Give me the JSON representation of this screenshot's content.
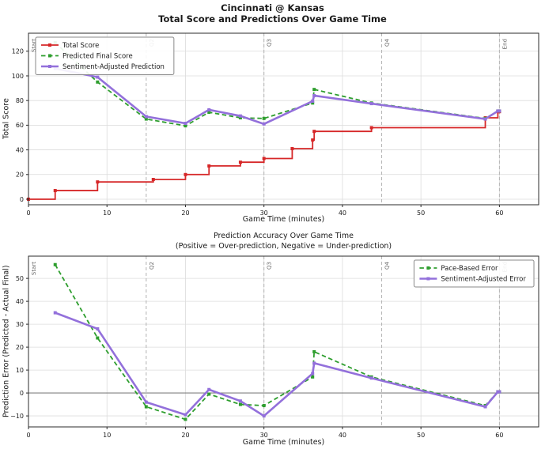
{
  "figure": {
    "suptitle_line1": "Cincinnati @ Kansas",
    "suptitle_line2": "Total Score and Predictions Over Game Time"
  },
  "colors": {
    "total_score": "#d62728",
    "pace_prediction": "#2e9e2e",
    "sentiment_prediction": "#9370db",
    "grid": "#dcdcdc",
    "event_line": "#b3b3b3",
    "zero_line": "#808080",
    "spine": "#2b2b2b",
    "text": "#1a1a1a",
    "legend_border": "#8a8a8a"
  },
  "chart_data": [
    {
      "id": "total-score-chart",
      "type": "line",
      "xlabel": "Game Time (minutes)",
      "ylabel": "Total Score",
      "xlim": [
        0,
        65
      ],
      "ylim": [
        -4.5,
        134.6
      ],
      "xticks": [
        0,
        10,
        20,
        30,
        40,
        50,
        60
      ],
      "yticks": [
        0,
        20,
        40,
        60,
        80,
        100,
        120
      ],
      "grid": true,
      "zero_line": false,
      "legend_position": "upper-left",
      "events": [
        {
          "label": "Start",
          "x": 0
        },
        {
          "label": "Q2",
          "x": 15
        },
        {
          "label": "Q3",
          "x": 30
        },
        {
          "label": "Q4",
          "x": 45
        },
        {
          "label": "End",
          "x": 60
        }
      ],
      "series": [
        {
          "name": "Total Score",
          "color": "#d62728",
          "style": "step",
          "width": 1.8,
          "x": [
            0,
            3.4,
            8.8,
            15.9,
            20,
            23,
            27,
            30,
            33.6,
            36.2,
            36.4,
            43.7,
            58.2,
            59.8,
            60
          ],
          "y": [
            0,
            7,
            14,
            16,
            20,
            27,
            30,
            33,
            41,
            48,
            55,
            58,
            66,
            71,
            71
          ]
        },
        {
          "name": "Predicted Final Score",
          "color": "#2e9e2e",
          "style": "dashed",
          "width": 1.8,
          "x": [
            3.4,
            8.8,
            15,
            20,
            23,
            27,
            30,
            36.2,
            36.4,
            43.7,
            58.2,
            59.8,
            60
          ],
          "y": [
            127,
            95,
            65,
            59.5,
            70.5,
            66,
            65.5,
            78,
            89,
            78,
            65.5,
            71.5,
            71.5
          ]
        },
        {
          "name": "Sentiment-Adjusted Prediction",
          "color": "#9370db",
          "style": "solid",
          "width": 2.6,
          "x": [
            3.4,
            8.8,
            15,
            20,
            23,
            27,
            30,
            36.2,
            36.4,
            43.7,
            58.2,
            59.8,
            60
          ],
          "y": [
            106,
            99,
            67,
            61.5,
            72.5,
            67.5,
            61,
            79.5,
            84,
            77.5,
            65,
            71.5,
            71.5
          ]
        }
      ]
    },
    {
      "id": "prediction-error-chart",
      "type": "line",
      "title_line1": "Prediction Accuracy Over Game Time",
      "title_line2": "(Positive = Over-prediction, Negative = Under-prediction)",
      "xlabel": "Game Time (minutes)",
      "ylabel": "Prediction Error (Predicted - Actual Final)",
      "xlim": [
        0,
        65
      ],
      "ylim": [
        -14.8,
        59.7
      ],
      "xticks": [
        0,
        10,
        20,
        30,
        40,
        50,
        60
      ],
      "yticks": [
        -10,
        0,
        10,
        20,
        30,
        40,
        50
      ],
      "grid": true,
      "zero_line": true,
      "legend_position": "upper-right",
      "events": [
        {
          "label": "Start",
          "x": 0
        },
        {
          "label": "Q2",
          "x": 15
        },
        {
          "label": "Q3",
          "x": 30
        },
        {
          "label": "Q4",
          "x": 45
        },
        {
          "label": "End",
          "x": 60
        }
      ],
      "series": [
        {
          "name": "Pace-Based Error",
          "color": "#2e9e2e",
          "style": "dashed",
          "width": 1.8,
          "x": [
            3.4,
            8.8,
            15,
            20,
            23,
            27,
            30,
            36.2,
            36.4,
            43.7,
            58.2,
            59.8,
            60
          ],
          "y": [
            56,
            24,
            -6,
            -11.5,
            -0.5,
            -5,
            -5.5,
            7,
            18,
            7,
            -5.5,
            0.5,
            0.5
          ]
        },
        {
          "name": "Sentiment-Adjusted Error",
          "color": "#9370db",
          "style": "solid",
          "width": 2.6,
          "x": [
            3.4,
            8.8,
            15,
            20,
            23,
            27,
            30,
            36.2,
            36.4,
            43.7,
            58.2,
            59.8,
            60
          ],
          "y": [
            35,
            28,
            -4,
            -9.5,
            1.5,
            -3.5,
            -10,
            8.5,
            13,
            6.5,
            -6,
            0.5,
            0.5
          ]
        }
      ]
    }
  ]
}
